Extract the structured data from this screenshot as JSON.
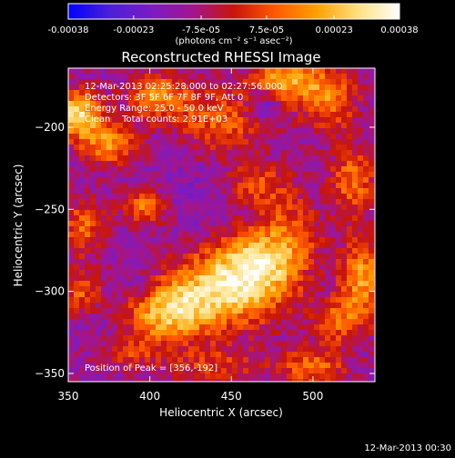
{
  "colorbar": {
    "tick_labels": [
      "-0.00038",
      "-0.00023",
      "-7.5e-05",
      "7.5e-05",
      "0.00023",
      "0.00038"
    ],
    "tick_values": [
      -0.00038,
      -0.00023,
      -7.5e-05,
      7.5e-05,
      0.00023,
      0.00038
    ],
    "range": [
      -0.00038,
      0.00038
    ],
    "unit_label": "(photons cm⁻² s⁻¹ asec⁻²)",
    "colors": [
      "#0000ff",
      "#4b1fd9",
      "#7a1cc4",
      "#a2158f",
      "#c8150a",
      "#ff5a00",
      "#ffa000",
      "#ffe080",
      "#ffffff"
    ]
  },
  "chart_data": {
    "type": "heatmap",
    "title": "Reconstructed RHESSI Image",
    "xlabel": "Heliocentric X (arcsec)",
    "ylabel": "Heliocentric Y (arcsec)",
    "xlim": [
      350,
      538
    ],
    "ylim": [
      -355,
      -164
    ],
    "xticks": [
      350,
      400,
      450,
      500
    ],
    "yticks": [
      -350,
      -300,
      -250,
      -200
    ],
    "annotations": [
      "12-Mar-2013 02:25:28.000 to 02:27:56.000",
      "Detectors: 3F 5F 6F 7F 8F 9F, Att 0",
      "Energy Range: 25.0 - 50.0 keV",
      "Clean    Total counts: 2.91E+03"
    ],
    "peak_label": "Position of Peak = [356,-192]",
    "peak": {
      "x": 356,
      "y": -192
    },
    "blobs": [
      {
        "x": 444,
        "y": -300,
        "sx": 28,
        "sy": 16,
        "v": 0.00031
      },
      {
        "x": 410,
        "y": -314,
        "sx": 18,
        "sy": 12,
        "v": 0.00026
      },
      {
        "x": 462,
        "y": -282,
        "sx": 18,
        "sy": 14,
        "v": 0.00024
      },
      {
        "x": 485,
        "y": -268,
        "sx": 14,
        "sy": 20,
        "v": 0.00016
      },
      {
        "x": 356,
        "y": -192,
        "sx": 10,
        "sy": 10,
        "v": 0.00036
      },
      {
        "x": 375,
        "y": -210,
        "sx": 12,
        "sy": 9,
        "v": 0.00025
      },
      {
        "x": 405,
        "y": -181,
        "sx": 14,
        "sy": 10,
        "v": 0.00022
      },
      {
        "x": 445,
        "y": -196,
        "sx": 20,
        "sy": 14,
        "v": 0.00018
      },
      {
        "x": 482,
        "y": -172,
        "sx": 14,
        "sy": 9,
        "v": 0.00028
      },
      {
        "x": 510,
        "y": -182,
        "sx": 12,
        "sy": 14,
        "v": 0.00022
      },
      {
        "x": 525,
        "y": -232,
        "sx": 10,
        "sy": 14,
        "v": 0.0002
      },
      {
        "x": 530,
        "y": -292,
        "sx": 10,
        "sy": 18,
        "v": 0.00026
      },
      {
        "x": 515,
        "y": -318,
        "sx": 10,
        "sy": 10,
        "v": 0.00018
      },
      {
        "x": 500,
        "y": -346,
        "sx": 14,
        "sy": 8,
        "v": 0.0002
      },
      {
        "x": 398,
        "y": -248,
        "sx": 10,
        "sy": 8,
        "v": 0.00022
      },
      {
        "x": 360,
        "y": -260,
        "sx": 10,
        "sy": 12,
        "v": 0.00018
      },
      {
        "x": 358,
        "y": -300,
        "sx": 8,
        "sy": 10,
        "v": 0.00016
      },
      {
        "x": 385,
        "y": -336,
        "sx": 14,
        "sy": 8,
        "v": 0.00012
      },
      {
        "x": 440,
        "y": -345,
        "sx": 22,
        "sy": 8,
        "v": 0.00012
      },
      {
        "x": 465,
        "y": -235,
        "sx": 14,
        "sy": 10,
        "v": 0.00014
      },
      {
        "x": 392,
        "y": -296,
        "sx": 10,
        "sy": 8,
        "v": -0.00014
      },
      {
        "x": 470,
        "y": -186,
        "sx": 8,
        "sy": 8,
        "v": -0.0002
      },
      {
        "x": 430,
        "y": -245,
        "sx": 20,
        "sy": 20,
        "v": -8e-05
      },
      {
        "x": 505,
        "y": -300,
        "sx": 14,
        "sy": 14,
        "v": -8e-05
      },
      {
        "x": 375,
        "y": -325,
        "sx": 12,
        "sy": 10,
        "v": -0.0001
      }
    ]
  },
  "footer": {
    "timestamp": "12-Mar-2013 00:30"
  }
}
